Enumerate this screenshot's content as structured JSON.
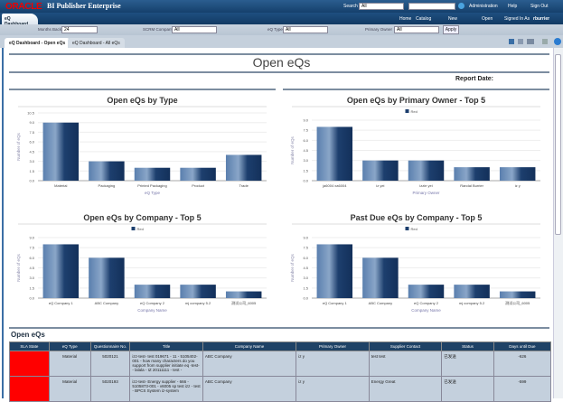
{
  "header": {
    "brand": "ORACLE",
    "product": "BI Publisher Enterprise",
    "search_label": "Search",
    "search_scope": "All",
    "search_value": "",
    "links": [
      "Administration",
      "Help",
      "Sign Out"
    ],
    "nav": [
      "Home",
      "Catalog",
      "New",
      "Open",
      "Signed In As"
    ],
    "user": "rburrier"
  },
  "dashboard_tab": "eQ Dashboard",
  "filters": [
    {
      "label": "Months Back",
      "value": "24"
    },
    {
      "label": "SCRM Company",
      "value": "All"
    },
    {
      "label": "eQ Type",
      "value": "All"
    },
    {
      "label": "Primary Owner",
      "value": "All"
    }
  ],
  "apply_label": "Apply",
  "page_tabs": [
    "eQ Dashboard - Open eQs",
    "eQ Dashboard - All eQs"
  ],
  "page_title": "Open eQs",
  "report_date_label": "Report Date:",
  "colors": {
    "bar": "#1d3f6e",
    "sla_red": "#ff0000",
    "header": "#1f4266"
  },
  "chart_data": [
    {
      "type": "bar",
      "title": "Open eQs by Type",
      "xlabel": "eQ Type",
      "ylabel": "Number of eQs",
      "ylim": [
        0,
        10.5
      ],
      "yticks": [
        "0.0",
        "1.5",
        "3.0",
        "4.5",
        "6.0",
        "7.5",
        "9.0",
        "10.5"
      ],
      "categories": [
        "Material",
        "Packaging",
        "Printed Packaging",
        "Product",
        "Trade"
      ],
      "values": [
        9,
        3,
        2,
        2,
        4
      ],
      "legend": null
    },
    {
      "type": "bar",
      "title": "Open eQs by Primary Owner - Top 5",
      "xlabel": "Primary Owner",
      "ylabel": "Number of eQs",
      "ylim": [
        0,
        9
      ],
      "yticks": [
        "0.0",
        "1.5",
        "3.0",
        "4.5",
        "6.0",
        "7.5",
        "9.0"
      ],
      "categories": [
        "ja6004 xa6004",
        "iz yei",
        "izzie yei",
        "Randal Burrier",
        "iz y"
      ],
      "values": [
        8,
        3,
        3,
        2,
        2
      ],
      "legend": "Red"
    },
    {
      "type": "bar",
      "title": "Open eQs by Company - Top 5",
      "xlabel": "Company Name",
      "ylabel": "Number of eQs",
      "ylim": [
        0,
        9
      ],
      "yticks": [
        "0.0",
        "1.5",
        "3.0",
        "4.5",
        "6.0",
        "7.5",
        "9.0"
      ],
      "categories": [
        "eQ Company 1",
        "ABC Company",
        "eQ Company 2",
        "mj company 5.2",
        "测试公司_6005"
      ],
      "values": [
        8,
        6,
        2,
        2,
        1
      ],
      "legend": "Red"
    },
    {
      "type": "bar",
      "title": "Past Due eQs by Company - Top 5",
      "xlabel": "Company Name",
      "ylabel": "Number of eQs",
      "ylim": [
        0,
        9
      ],
      "yticks": [
        "0.0",
        "1.5",
        "3.0",
        "4.5",
        "6.0",
        "7.5",
        "9.0"
      ],
      "categories": [
        "eQ Company 1",
        "ABC Company",
        "eQ Company 2",
        "mj company 5.2",
        "测试公司_6005"
      ],
      "values": [
        8,
        6,
        2,
        2,
        1
      ],
      "legend": "Red"
    }
  ],
  "table": {
    "title": "Open eQs",
    "columns": [
      "SLA State",
      "eQ Type",
      "Questionnaire No.",
      "Title",
      "Company Name",
      "Primary Owner",
      "Supplier Contact",
      "Status",
      "Days until Due"
    ],
    "rows": [
      [
        "",
        "Material",
        "5020121",
        "izz-test- test 019671 - 11 - 5105402-001 - how many characters do you support from supplier initiate eq -test-- lalala - IZ 20111111 - test -",
        "ABC Company",
        "iz y",
        "test test",
        "已发送",
        "-626"
      ],
      [
        "",
        "Material",
        "5020193",
        "izz-test- Energy supplier - 666 - 5105873-001 - v6005 sp test izz - test - BPCS System iz-system",
        "ABC Company",
        "iz y",
        "Energy Great",
        "已发送",
        "-599"
      ]
    ]
  }
}
